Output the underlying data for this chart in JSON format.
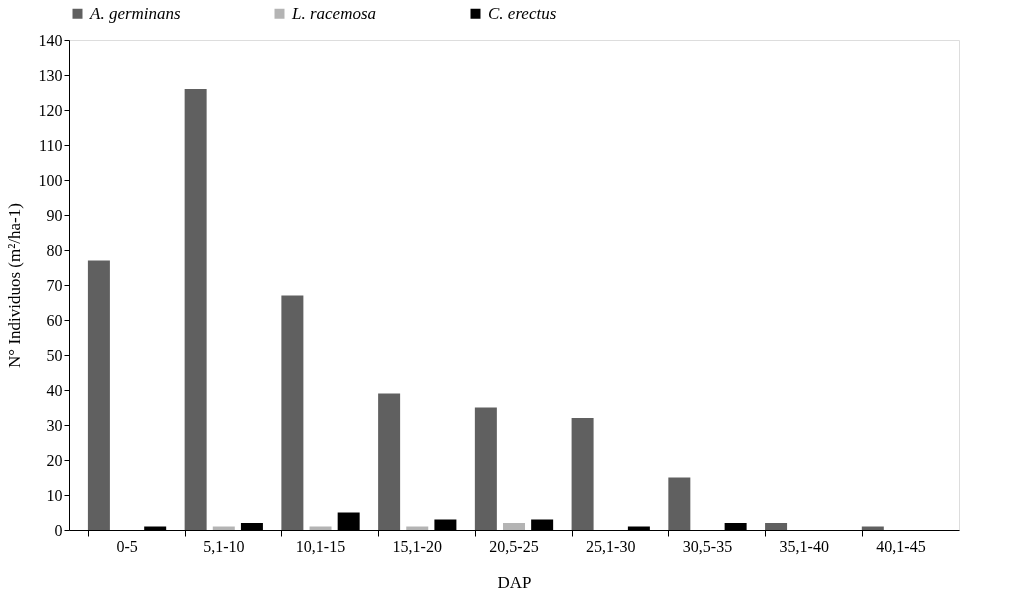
{
  "chart_data": {
    "type": "bar",
    "xlabel": "DAP",
    "ylabel": "N° Individuos (m²/ha-1)",
    "categories": [
      "0-5",
      "5,1-10",
      "10,1-15",
      "15,1-20",
      "20,5-25",
      "25,1-30",
      "30,5-35",
      "35,1-40",
      "40,1-45"
    ],
    "series": [
      {
        "name": "A. germinans",
        "color": "#606060",
        "values": [
          77,
          126,
          67,
          39,
          35,
          32,
          15,
          2,
          1
        ]
      },
      {
        "name": "L. racemosa",
        "color": "#b4b4b4",
        "values": [
          0,
          1,
          1,
          1,
          2,
          0,
          0,
          0,
          0
        ]
      },
      {
        "name": "C. erectus",
        "color": "#000000",
        "values": [
          1,
          2,
          5,
          3,
          3,
          1,
          2,
          0,
          0
        ]
      }
    ],
    "ylim": [
      0,
      140
    ],
    "yticks": [
      0,
      10,
      20,
      30,
      40,
      50,
      60,
      70,
      80,
      90,
      100,
      110,
      120,
      130,
      140
    ],
    "grid": false,
    "legend": "top"
  }
}
